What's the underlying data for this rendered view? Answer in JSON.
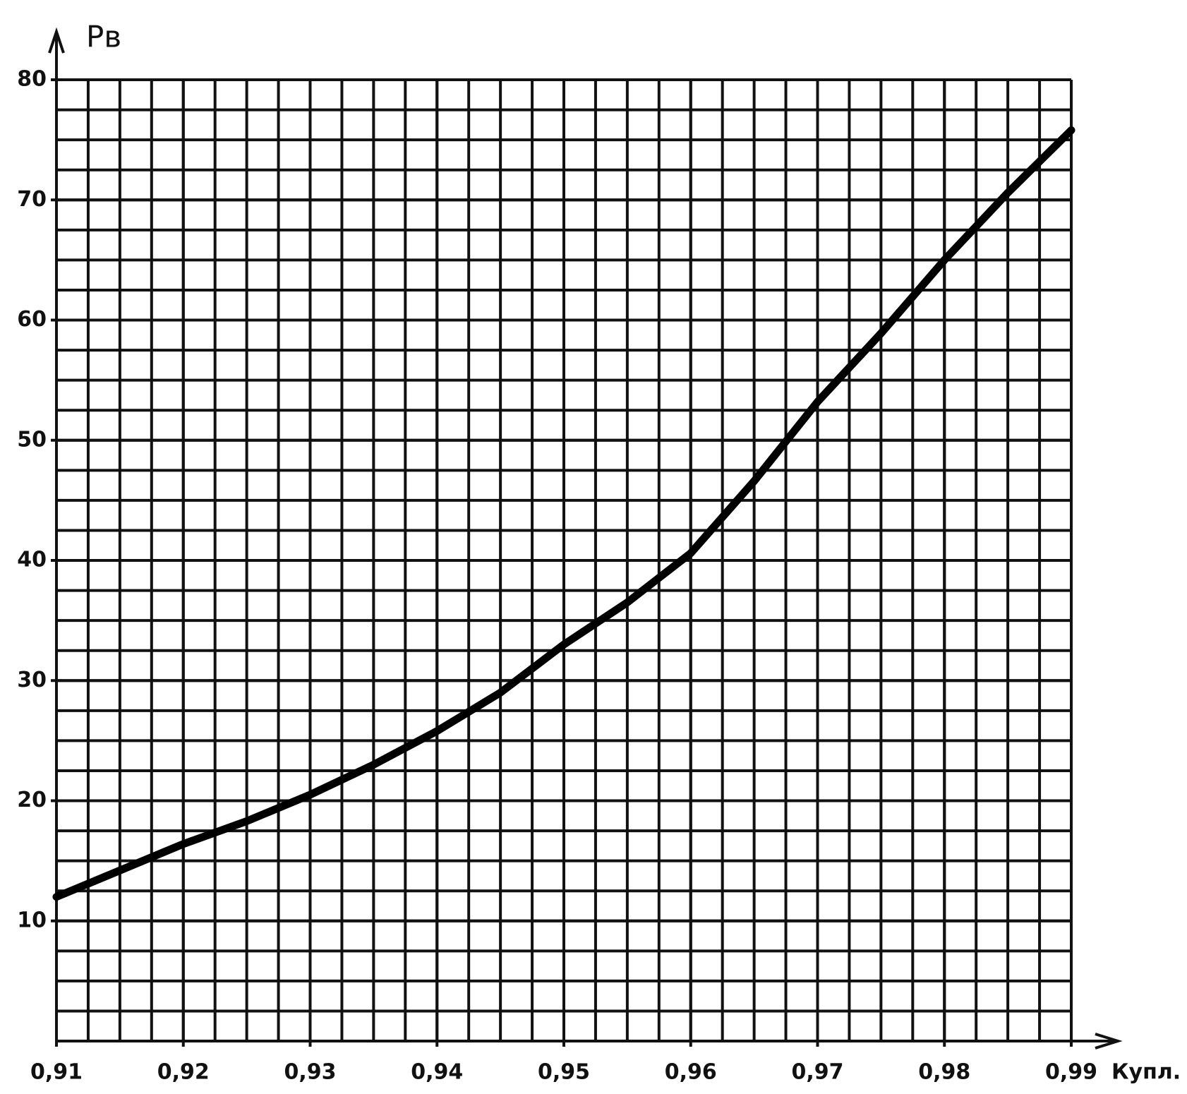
{
  "chart_data": {
    "type": "line",
    "y_label": "Pв",
    "x_label": "Купл.",
    "x": [
      0.91,
      0.915,
      0.92,
      0.925,
      0.93,
      0.935,
      0.94,
      0.945,
      0.95,
      0.955,
      0.96,
      0.965,
      0.97,
      0.975,
      0.98,
      0.985,
      0.99
    ],
    "series": [
      {
        "color": "#000000",
        "values": [
          12,
          14.2,
          16.4,
          18.3,
          20.5,
          23,
          25.8,
          29,
          33,
          36.5,
          40.6,
          46.6,
          53.2,
          58.9,
          65,
          70.6,
          75.8
        ]
      }
    ],
    "xlim": [
      0.91,
      0.99
    ],
    "xticks": [
      {
        "value": 0.91,
        "label": "0,91"
      },
      {
        "value": 0.92,
        "label": "0,92"
      },
      {
        "value": 0.93,
        "label": "0,93"
      },
      {
        "value": 0.94,
        "label": "0,94"
      },
      {
        "value": 0.95,
        "label": "0,95"
      },
      {
        "value": 0.96,
        "label": "0,96"
      },
      {
        "value": 0.97,
        "label": "0,97"
      },
      {
        "value": 0.98,
        "label": "0,98"
      },
      {
        "value": 0.99,
        "label": "0,99"
      }
    ],
    "ylim": [
      0,
      80
    ],
    "yticks": [
      10,
      20,
      30,
      40,
      50,
      60,
      70,
      80
    ],
    "grid": true,
    "grid_subdivisions": 4
  }
}
